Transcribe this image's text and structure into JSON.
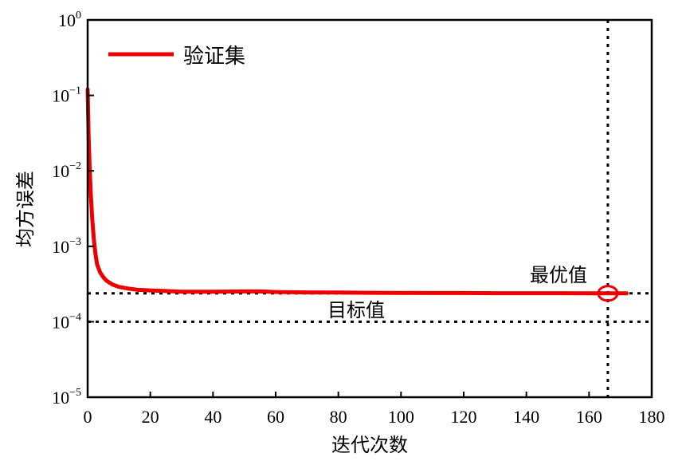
{
  "chart_data": {
    "type": "line",
    "xlabel": "迭代次数",
    "ylabel": "均方误差",
    "xlim": [
      0,
      180
    ],
    "ylim": [
      1e-05,
      1
    ],
    "yscale": "log",
    "x_ticks": [
      0,
      20,
      40,
      60,
      80,
      100,
      120,
      140,
      160,
      180
    ],
    "y_ticks": [
      {
        "value": 1,
        "base": "10",
        "exp": "0"
      },
      {
        "value": 0.1,
        "base": "10",
        "exp": "−1"
      },
      {
        "value": 0.01,
        "base": "10",
        "exp": "−2"
      },
      {
        "value": 0.001,
        "base": "10",
        "exp": "−3"
      },
      {
        "value": 0.0001,
        "base": "10",
        "exp": "−4"
      },
      {
        "value": 1e-05,
        "base": "10",
        "exp": "−5"
      }
    ],
    "legend": {
      "position": "top-left"
    },
    "series": [
      {
        "name": "验证集",
        "color": "#ee0000",
        "x": [
          0,
          0.3,
          0.6,
          1,
          1.5,
          2,
          2.5,
          3,
          4,
          5,
          6,
          8,
          10,
          13,
          16,
          20,
          25,
          30,
          40,
          50,
          55,
          60,
          65,
          70,
          80,
          90,
          100,
          110,
          120,
          130,
          140,
          150,
          160,
          166,
          170,
          172
        ],
        "y": [
          0.12,
          0.03,
          0.012,
          0.005,
          0.0022,
          0.0012,
          0.0008,
          0.00058,
          0.00045,
          0.00039,
          0.00035,
          0.00031,
          0.00029,
          0.000275,
          0.000265,
          0.00026,
          0.000255,
          0.00025,
          0.00025,
          0.000252,
          0.000252,
          0.000248,
          0.000246,
          0.000245,
          0.000244,
          0.000242,
          0.000241,
          0.00024,
          0.00024,
          0.000239,
          0.000239,
          0.000239,
          0.000238,
          0.000238,
          0.000238,
          0.000238
        ]
      }
    ],
    "reference_lines": [
      {
        "orientation": "horizontal",
        "value": 0.0001,
        "label": "目标值",
        "style": "dotted"
      },
      {
        "orientation": "horizontal",
        "value": 0.000238,
        "label": "",
        "style": "dotted"
      },
      {
        "orientation": "vertical",
        "value": 166,
        "label": "",
        "style": "dotted"
      }
    ],
    "best_point": {
      "x": 166,
      "y": 0.000238,
      "label": "最优值",
      "marker": "circle"
    }
  }
}
